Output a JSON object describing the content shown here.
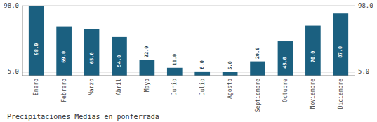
{
  "chart_data": {
    "type": "bar",
    "title": "Precipitaciones Medias en ponferrada",
    "categories": [
      "Enero",
      "Febrero",
      "Marzo",
      "Abril",
      "Mayo",
      "Junio",
      "Julio",
      "Agosto",
      "Septiembre",
      "Octubre",
      "Noviembre",
      "Diciembre"
    ],
    "values": [
      98.0,
      69.0,
      65.0,
      54.0,
      22.0,
      11.0,
      6.0,
      5.0,
      20.0,
      48.0,
      70.0,
      87.0
    ],
    "value_labels": [
      "98.0",
      "69.0",
      "65.0",
      "54.0",
      "22.0",
      "11.0",
      "6.0",
      "5.0",
      "20.0",
      "48.0",
      "70.0",
      "87.0"
    ],
    "color": "#1b6080",
    "ylim": [
      0,
      98.0
    ],
    "yticks": [
      {
        "value": 5.0,
        "label": "5.0"
      },
      {
        "value": 98.0,
        "label": "98.0"
      }
    ],
    "grid": true,
    "data_labels": true
  }
}
